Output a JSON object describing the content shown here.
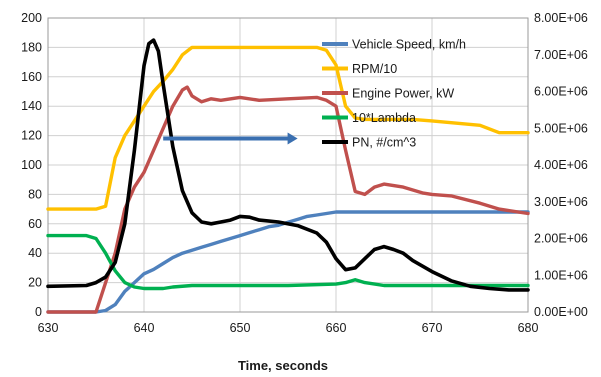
{
  "chart_data": {
    "type": "line",
    "title": "",
    "xlabel": "Time, seconds",
    "ylabel": "",
    "y2label": "",
    "xlim": [
      630,
      680
    ],
    "ylim": [
      0,
      200
    ],
    "y2lim": [
      0,
      8000000
    ],
    "x_ticks": [
      "630",
      "640",
      "650",
      "660",
      "670",
      "680"
    ],
    "y_ticks": [
      "0",
      "20",
      "40",
      "60",
      "80",
      "100",
      "120",
      "140",
      "160",
      "180",
      "200"
    ],
    "y2_ticks": [
      "0.00E+00",
      "1.00E+06",
      "2.00E+06",
      "3.00E+06",
      "4.00E+06",
      "5.00E+06",
      "6.00E+06",
      "7.00E+06",
      "8.00E+06"
    ],
    "grid": true,
    "legend_position": "top-right",
    "arrow": {
      "from": [
        642,
        118
      ],
      "to": [
        656,
        118
      ],
      "color": "#3a6fb0"
    },
    "series": [
      {
        "name": "Vehicle Speed, km/h",
        "axis": "left",
        "color": "#4f81bd",
        "x": [
          630,
          635,
          636,
          637,
          638,
          639,
          640,
          641,
          642,
          643,
          644,
          645,
          646,
          647,
          648,
          649,
          650,
          651,
          652,
          653,
          654,
          655,
          656,
          657,
          658,
          659,
          660,
          661,
          662,
          665,
          670,
          675,
          680
        ],
        "y": [
          0,
          0,
          1,
          5,
          14,
          20,
          26,
          29,
          33,
          37,
          40,
          42,
          44,
          46,
          48,
          50,
          52,
          54,
          56,
          58,
          59,
          61,
          63,
          65,
          66,
          67,
          68,
          68,
          68,
          68,
          68,
          68,
          68
        ]
      },
      {
        "name": "RPM/10",
        "axis": "left",
        "color": "#ffc000",
        "x": [
          630,
          632,
          634,
          635,
          636,
          637,
          638,
          639,
          640,
          641,
          642,
          643,
          644,
          645,
          646,
          650,
          655,
          658,
          659,
          660,
          661,
          662,
          663,
          665,
          668,
          670,
          675,
          677,
          680
        ],
        "y": [
          70,
          70,
          70,
          70,
          72,
          105,
          120,
          130,
          140,
          150,
          157,
          165,
          175,
          180,
          180,
          180,
          180,
          180,
          178,
          168,
          140,
          132,
          131,
          131,
          131,
          130,
          127,
          122,
          122
        ]
      },
      {
        "name": "Engine Power, kW",
        "axis": "left",
        "color": "#c0504d",
        "x": [
          630,
          635,
          636,
          637,
          638,
          639,
          640,
          641,
          642,
          643,
          644,
          644.5,
          645,
          646,
          647,
          648,
          650,
          652,
          655,
          658,
          659,
          660,
          661,
          662,
          663,
          664,
          665,
          667,
          669,
          670,
          672,
          675,
          677,
          680
        ],
        "y": [
          0,
          0,
          20,
          40,
          70,
          85,
          95,
          110,
          125,
          140,
          151,
          153,
          147,
          143,
          145,
          144,
          146,
          144,
          145,
          146,
          144,
          140,
          110,
          82,
          80,
          85,
          87,
          85,
          81,
          80,
          79,
          74,
          70,
          67
        ]
      },
      {
        "name": "10*Lambda",
        "axis": "left",
        "color": "#00b050",
        "x": [
          630,
          632,
          634,
          635,
          636,
          637,
          638,
          639,
          640,
          642,
          643,
          645,
          650,
          655,
          660,
          661,
          662,
          663,
          665,
          670,
          675,
          680
        ],
        "y": [
          52,
          52,
          52,
          50,
          40,
          28,
          20,
          17,
          16,
          16,
          17,
          18,
          18,
          18,
          19,
          20,
          22,
          20,
          18,
          18,
          18,
          18
        ]
      },
      {
        "name": "PN, #/cm^3",
        "axis": "right",
        "color": "#000000",
        "x": [
          630,
          634,
          635,
          636,
          637,
          638,
          639,
          640,
          640.5,
          641,
          641.5,
          642,
          643,
          644,
          645,
          646,
          647,
          648,
          649,
          650,
          651,
          652,
          654,
          656,
          658,
          659,
          660,
          661,
          662,
          663,
          664,
          665,
          666,
          667,
          668,
          670,
          672,
          674,
          676,
          678,
          680
        ],
        "y": [
          700000,
          720000,
          800000,
          950000,
          1350000,
          2400000,
          4400000,
          6700000,
          7300000,
          7400000,
          7100000,
          6200000,
          4500000,
          3300000,
          2700000,
          2450000,
          2400000,
          2450000,
          2500000,
          2600000,
          2580000,
          2500000,
          2450000,
          2350000,
          2150000,
          1900000,
          1450000,
          1150000,
          1200000,
          1450000,
          1700000,
          1780000,
          1700000,
          1600000,
          1400000,
          1100000,
          850000,
          700000,
          640000,
          600000,
          600000
        ]
      }
    ]
  }
}
